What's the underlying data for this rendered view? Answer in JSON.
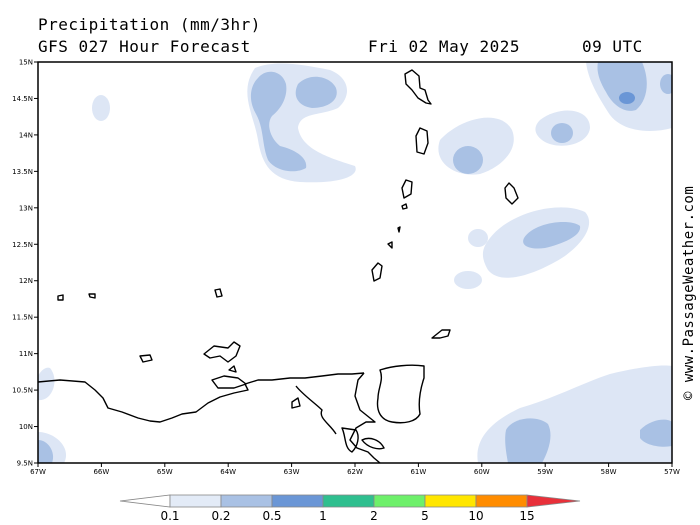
{
  "header": {
    "line1": "Precipitation (mm/3hr)",
    "model_line": "GFS 027 Hour Forecast",
    "date": "Fri 02 May 2025",
    "time": "09 UTC"
  },
  "credit": "© www.PassageWeather.com",
  "axes": {
    "lat_labels": [
      "15N",
      "14.5N",
      "14N",
      "13.5N",
      "13N",
      "12.5N",
      "12N",
      "11.5N",
      "11N",
      "10.5N",
      "10N",
      "9.5N"
    ],
    "lon_labels": [
      "67W",
      "66W",
      "65W",
      "64W",
      "63W",
      "62W",
      "61W",
      "60W",
      "59W",
      "58W",
      "57W"
    ],
    "lat_range": [
      9.5,
      15.0
    ],
    "lon_range": [
      -67,
      -57
    ]
  },
  "legend": {
    "labels": [
      "0.1",
      "0.2",
      "0.5",
      "1",
      "2",
      "5",
      "10",
      "15"
    ],
    "colors": [
      "#ffffff",
      "#e3ebf7",
      "#a9c1e4",
      "#6a96d6",
      "#2fbf8f",
      "#6ef06a",
      "#ffe600",
      "#ff8c00",
      "#e8303a"
    ]
  },
  "colors": {
    "light": "#dde6f5",
    "medium": "#a9c1e4",
    "dark": "#6a96d6",
    "coast": "#000000"
  }
}
